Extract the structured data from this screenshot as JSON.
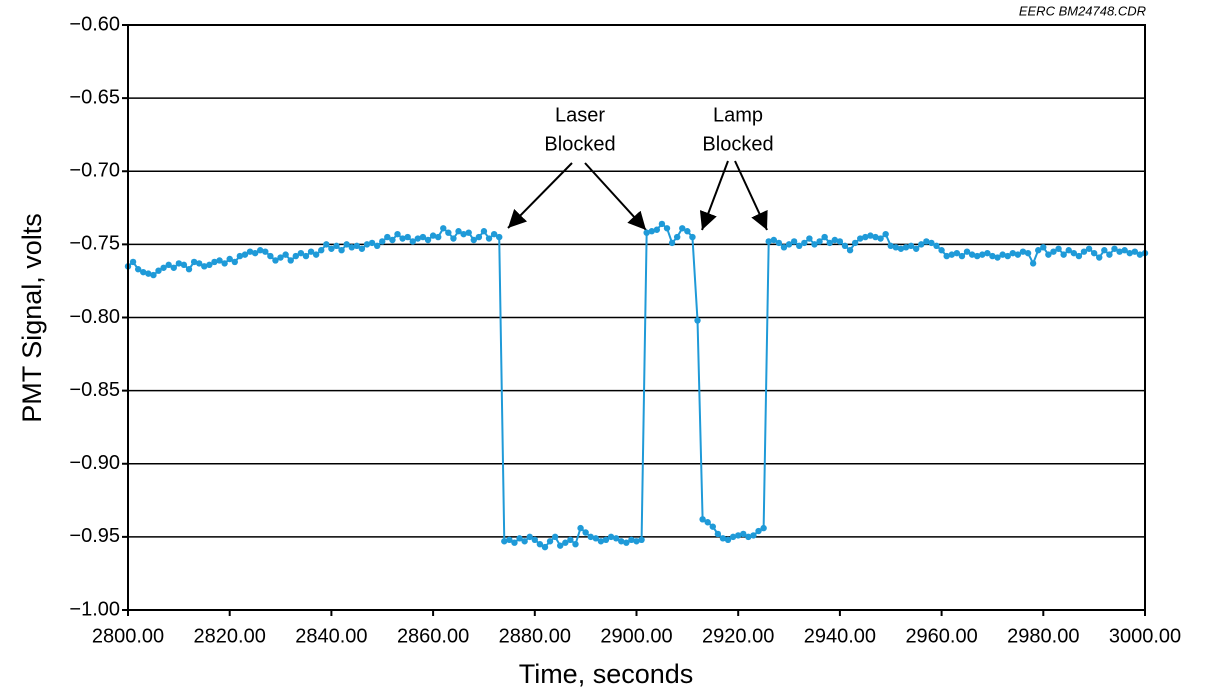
{
  "chart_data": {
    "type": "line",
    "note": "EERC BM24748.CDR",
    "x_label": "Time, seconds",
    "y_label": "PMT Signal, volts",
    "annotations": [
      {
        "lines": [
          "Laser",
          "Blocked"
        ]
      },
      {
        "lines": [
          "Lamp",
          "Blocked"
        ]
      }
    ],
    "xlim": [
      2800,
      3000
    ],
    "xticks": [
      {
        "value": 2800,
        "label": "2800.00"
      },
      {
        "value": 2820,
        "label": "2820.00"
      },
      {
        "value": 2840,
        "label": "2840.00"
      },
      {
        "value": 2860,
        "label": "2860.00"
      },
      {
        "value": 2880,
        "label": "2880.00"
      },
      {
        "value": 2900,
        "label": "2900.00"
      },
      {
        "value": 2920,
        "label": "2920.00"
      },
      {
        "value": 2940,
        "label": "2940.00"
      },
      {
        "value": 2960,
        "label": "2960.00"
      },
      {
        "value": 2980,
        "label": "2980.00"
      },
      {
        "value": 3000,
        "label": "3000.00"
      }
    ],
    "ylim": [
      -1.0,
      -0.6
    ],
    "yticks": [
      {
        "value": -1.0,
        "label": "−1.00"
      },
      {
        "value": -0.95,
        "label": "−0.95"
      },
      {
        "value": -0.9,
        "label": "−0.90"
      },
      {
        "value": -0.85,
        "label": "−0.85"
      },
      {
        "value": -0.8,
        "label": "−0.80"
      },
      {
        "value": -0.75,
        "label": "−0.75"
      },
      {
        "value": -0.7,
        "label": "−0.70"
      },
      {
        "value": -0.65,
        "label": "−0.65"
      },
      {
        "value": -0.6,
        "label": "−0.60"
      }
    ],
    "grid": true,
    "x": [
      2800,
      2801,
      2802,
      2803,
      2804,
      2805,
      2806,
      2807,
      2808,
      2809,
      2810,
      2811,
      2812,
      2813,
      2814,
      2815,
      2816,
      2817,
      2818,
      2819,
      2820,
      2821,
      2822,
      2823,
      2824,
      2825,
      2826,
      2827,
      2828,
      2829,
      2830,
      2831,
      2832,
      2833,
      2834,
      2835,
      2836,
      2837,
      2838,
      2839,
      2840,
      2841,
      2842,
      2843,
      2844,
      2845,
      2846,
      2847,
      2848,
      2849,
      2850,
      2851,
      2852,
      2853,
      2854,
      2855,
      2856,
      2857,
      2858,
      2859,
      2860,
      2861,
      2862,
      2863,
      2864,
      2865,
      2866,
      2867,
      2868,
      2869,
      2870,
      2871,
      2872,
      2873,
      2874,
      2875,
      2876,
      2877,
      2878,
      2879,
      2880,
      2881,
      2882,
      2883,
      2884,
      2885,
      2886,
      2887,
      2888,
      2889,
      2890,
      2891,
      2892,
      2893,
      2894,
      2895,
      2896,
      2897,
      2898,
      2899,
      2900,
      2901,
      2902,
      2903,
      2904,
      2905,
      2906,
      2907,
      2908,
      2909,
      2910,
      2911,
      2912,
      2913,
      2914,
      2915,
      2916,
      2917,
      2918,
      2919,
      2920,
      2921,
      2922,
      2923,
      2924,
      2925,
      2926,
      2927,
      2928,
      2929,
      2930,
      2931,
      2932,
      2933,
      2934,
      2935,
      2936,
      2937,
      2938,
      2939,
      2940,
      2941,
      2942,
      2943,
      2944,
      2945,
      2946,
      2947,
      2948,
      2949,
      2950,
      2951,
      2952,
      2953,
      2954,
      2955,
      2956,
      2957,
      2958,
      2959,
      2960,
      2961,
      2962,
      2963,
      2964,
      2965,
      2966,
      2967,
      2968,
      2969,
      2970,
      2971,
      2972,
      2973,
      2974,
      2975,
      2976,
      2977,
      2978,
      2979,
      2980,
      2981,
      2982,
      2983,
      2984,
      2985,
      2986,
      2987,
      2988,
      2989,
      2990,
      2991,
      2992,
      2993,
      2994,
      2995,
      2996,
      2997,
      2998,
      2999,
      3000
    ],
    "series": [
      {
        "color": "#1f9ad8",
        "values": [
          -0.765,
          -0.762,
          -0.767,
          -0.769,
          -0.77,
          -0.771,
          -0.768,
          -0.766,
          -0.764,
          -0.766,
          -0.763,
          -0.764,
          -0.767,
          -0.762,
          -0.763,
          -0.765,
          -0.764,
          -0.762,
          -0.761,
          -0.763,
          -0.76,
          -0.762,
          -0.758,
          -0.757,
          -0.755,
          -0.756,
          -0.754,
          -0.755,
          -0.758,
          -0.761,
          -0.759,
          -0.757,
          -0.761,
          -0.758,
          -0.756,
          -0.758,
          -0.755,
          -0.757,
          -0.754,
          -0.75,
          -0.753,
          -0.751,
          -0.754,
          -0.75,
          -0.752,
          -0.751,
          -0.753,
          -0.75,
          -0.749,
          -0.751,
          -0.748,
          -0.745,
          -0.747,
          -0.743,
          -0.746,
          -0.745,
          -0.748,
          -0.746,
          -0.745,
          -0.747,
          -0.744,
          -0.745,
          -0.739,
          -0.742,
          -0.746,
          -0.741,
          -0.743,
          -0.742,
          -0.747,
          -0.745,
          -0.741,
          -0.746,
          -0.743,
          -0.745,
          -0.953,
          -0.952,
          -0.954,
          -0.951,
          -0.953,
          -0.95,
          -0.952,
          -0.955,
          -0.957,
          -0.953,
          -0.95,
          -0.956,
          -0.954,
          -0.952,
          -0.955,
          -0.944,
          -0.947,
          -0.95,
          -0.951,
          -0.953,
          -0.952,
          -0.95,
          -0.951,
          -0.953,
          -0.954,
          -0.952,
          -0.953,
          -0.952,
          -0.742,
          -0.741,
          -0.74,
          -0.736,
          -0.739,
          -0.749,
          -0.745,
          -0.739,
          -0.741,
          -0.745,
          -0.802,
          -0.938,
          -0.94,
          -0.943,
          -0.948,
          -0.951,
          -0.952,
          -0.95,
          -0.949,
          -0.948,
          -0.95,
          -0.949,
          -0.946,
          -0.944,
          -0.748,
          -0.747,
          -0.749,
          -0.752,
          -0.75,
          -0.748,
          -0.751,
          -0.749,
          -0.746,
          -0.75,
          -0.748,
          -0.745,
          -0.749,
          -0.747,
          -0.748,
          -0.751,
          -0.754,
          -0.749,
          -0.746,
          -0.745,
          -0.744,
          -0.745,
          -0.746,
          -0.743,
          -0.751,
          -0.752,
          -0.753,
          -0.752,
          -0.751,
          -0.753,
          -0.75,
          -0.748,
          -0.749,
          -0.751,
          -0.754,
          -0.758,
          -0.757,
          -0.756,
          -0.758,
          -0.755,
          -0.757,
          -0.758,
          -0.757,
          -0.756,
          -0.758,
          -0.759,
          -0.757,
          -0.758,
          -0.756,
          -0.757,
          -0.755,
          -0.756,
          -0.763,
          -0.754,
          -0.752,
          -0.757,
          -0.755,
          -0.753,
          -0.757,
          -0.754,
          -0.756,
          -0.758,
          -0.755,
          -0.753,
          -0.756,
          -0.759,
          -0.754,
          -0.757,
          -0.753,
          -0.755,
          -0.754,
          -0.756,
          -0.755,
          -0.757,
          -0.756
        ]
      }
    ]
  }
}
